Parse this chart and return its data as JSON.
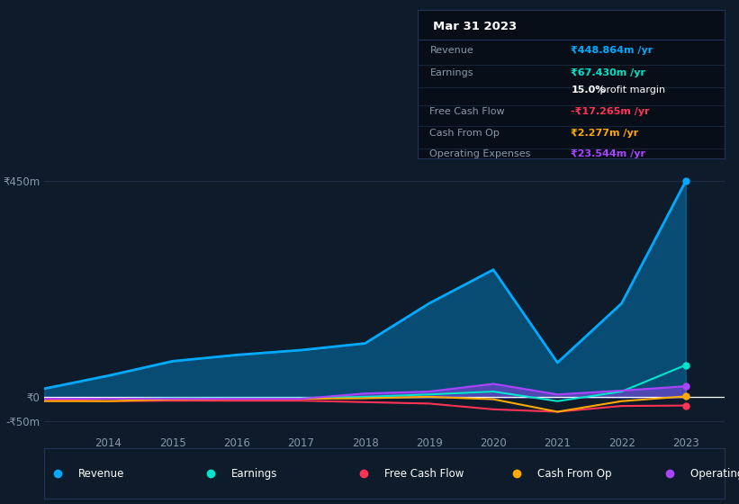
{
  "bg_color": "#0d1b2a",
  "plot_bg_color": "#0d1b2a",
  "grid_color": "#1e2f45",
  "text_color": "#8899aa",
  "years": [
    2013,
    2014,
    2015,
    2016,
    2017,
    2018,
    2019,
    2020,
    2021,
    2022,
    2023
  ],
  "revenue": [
    18,
    45,
    75,
    88,
    98,
    112,
    195,
    265,
    72,
    195,
    449
  ],
  "earnings": [
    -4,
    -3,
    -2,
    -2,
    -2,
    1,
    6,
    12,
    -8,
    12,
    67
  ],
  "free_cash_flow": [
    -5,
    -8,
    -7,
    -7,
    -7,
    -10,
    -13,
    -25,
    -30,
    -18,
    -17
  ],
  "cash_from_op": [
    -8,
    -8,
    -4,
    -3,
    -3,
    -2,
    1,
    -4,
    -30,
    -8,
    2
  ],
  "operating_expenses": [
    -3,
    -3,
    -3,
    -3,
    -3,
    8,
    12,
    28,
    6,
    14,
    23
  ],
  "revenue_color": "#00aaff",
  "earnings_color": "#00e5cc",
  "free_cash_flow_color": "#ff3355",
  "cash_from_op_color": "#ffaa00",
  "operating_expenses_color": "#aa44ff",
  "revenue_fill_alpha": 0.35,
  "opex_fill_alpha": 0.45,
  "ylim": [
    -75,
    490
  ],
  "ytick_vals": [
    -50,
    0,
    450
  ],
  "ytick_labels": [
    "-₹50m",
    "₹0",
    "₹450m"
  ],
  "xticks": [
    2014,
    2015,
    2016,
    2017,
    2018,
    2019,
    2020,
    2021,
    2022,
    2023
  ],
  "xtick_labels": [
    "2014",
    "2015",
    "2016",
    "2017",
    "2018",
    "2019",
    "2020",
    "2021",
    "2022",
    "2023"
  ],
  "info_box": {
    "date": "Mar 31 2023",
    "rows": [
      {
        "label": "Revenue",
        "value": "₹448.864m /yr",
        "value_color": "#00aaff",
        "is_margin": false
      },
      {
        "label": "Earnings",
        "value": "₹67.430m /yr",
        "value_color": "#00e5cc",
        "is_margin": false
      },
      {
        "label": "",
        "value": "15.0% profit margin",
        "value_color": "white",
        "is_margin": true
      },
      {
        "label": "Free Cash Flow",
        "value": "-₹17.265m /yr",
        "value_color": "#ff3355",
        "is_margin": false
      },
      {
        "label": "Cash From Op",
        "value": "₹2.277m /yr",
        "value_color": "#ffaa00",
        "is_margin": false
      },
      {
        "label": "Operating Expenses",
        "value": "₹23.544m /yr",
        "value_color": "#aa44ff",
        "is_margin": false
      }
    ]
  },
  "legend_items": [
    {
      "label": "Revenue",
      "color": "#00aaff"
    },
    {
      "label": "Earnings",
      "color": "#00e5cc"
    },
    {
      "label": "Free Cash Flow",
      "color": "#ff3355"
    },
    {
      "label": "Cash From Op",
      "color": "#ffaa00"
    },
    {
      "label": "Operating Expenses",
      "color": "#aa44ff"
    }
  ]
}
